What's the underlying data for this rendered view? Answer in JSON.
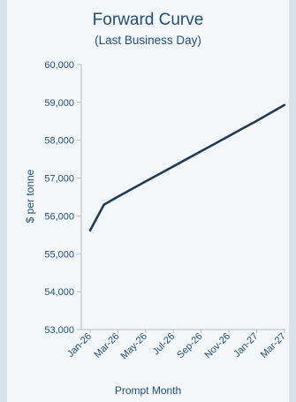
{
  "chart_data": {
    "type": "line",
    "title": "Forward Curve",
    "subtitle": "(Last Business Day)",
    "xlabel": "Prompt Month",
    "ylabel": "$ per tonne",
    "ylim": [
      53000,
      60000
    ],
    "yticks": [
      53000,
      54000,
      55000,
      56000,
      57000,
      58000,
      59000,
      60000
    ],
    "ytick_labels": [
      "53,000",
      "54,000",
      "55,000",
      "56,000",
      "57,000",
      "58,000",
      "59,000",
      "60,000"
    ],
    "x": [
      "Jan-26",
      "Feb-26",
      "Mar-26",
      "Apr-26",
      "May-26",
      "Jun-26",
      "Jul-26",
      "Aug-26",
      "Sep-26",
      "Oct-26",
      "Nov-26",
      "Dec-26",
      "Jan-27",
      "Feb-27",
      "Mar-27"
    ],
    "xtick_labels": [
      "Jan-26",
      "Mar-26",
      "May-26",
      "Jul-26",
      "Sep-26",
      "Nov-26",
      "Jan-27",
      "Mar-27"
    ],
    "series": [
      {
        "values": [
          55620,
          56300,
          56510,
          56710,
          56910,
          57110,
          57310,
          57510,
          57710,
          57910,
          58110,
          58310,
          58510,
          58720,
          58930
        ]
      }
    ],
    "grid": false,
    "legend": "none",
    "colors": {
      "line": "#1f3b57",
      "axis": "#b0bcc8",
      "text": "#1f4e79"
    }
  }
}
